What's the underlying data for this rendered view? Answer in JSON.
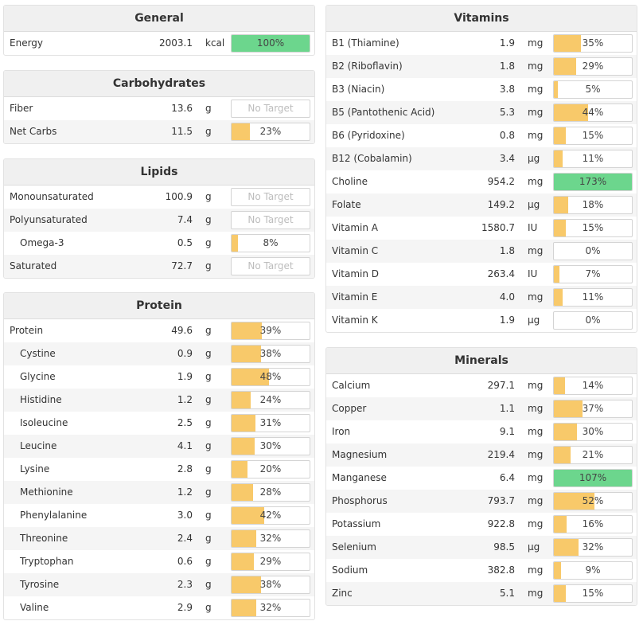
{
  "colors": {
    "bar_partial": "#f8c96a",
    "bar_complete": "#6cd68d",
    "header_bg": "#f0f0f0"
  },
  "sections": {
    "general": {
      "title": "General",
      "rows": [
        {
          "name": "Energy",
          "amount": "2003.1",
          "unit": "kcal",
          "label": "100%",
          "percent": 100
        }
      ]
    },
    "carbohydrates": {
      "title": "Carbohydrates",
      "rows": [
        {
          "name": "Fiber",
          "amount": "13.6",
          "unit": "g",
          "label": "No Target",
          "percent": null
        },
        {
          "name": "Net Carbs",
          "amount": "11.5",
          "unit": "g",
          "label": "23%",
          "percent": 23
        }
      ]
    },
    "lipids": {
      "title": "Lipids",
      "rows": [
        {
          "name": "Monounsaturated",
          "amount": "100.9",
          "unit": "g",
          "label": "No Target",
          "percent": null
        },
        {
          "name": "Polyunsaturated",
          "amount": "7.4",
          "unit": "g",
          "label": "No Target",
          "percent": null
        },
        {
          "name": "Omega-3",
          "amount": "0.5",
          "unit": "g",
          "label": "8%",
          "percent": 8,
          "indent": true
        },
        {
          "name": "Saturated",
          "amount": "72.7",
          "unit": "g",
          "label": "No Target",
          "percent": null
        }
      ]
    },
    "protein": {
      "title": "Protein",
      "rows": [
        {
          "name": "Protein",
          "amount": "49.6",
          "unit": "g",
          "label": "39%",
          "percent": 39
        },
        {
          "name": "Cystine",
          "amount": "0.9",
          "unit": "g",
          "label": "38%",
          "percent": 38,
          "indent": true
        },
        {
          "name": "Glycine",
          "amount": "1.9",
          "unit": "g",
          "label": "48%",
          "percent": 48,
          "indent": true
        },
        {
          "name": "Histidine",
          "amount": "1.2",
          "unit": "g",
          "label": "24%",
          "percent": 24,
          "indent": true
        },
        {
          "name": "Isoleucine",
          "amount": "2.5",
          "unit": "g",
          "label": "31%",
          "percent": 31,
          "indent": true
        },
        {
          "name": "Leucine",
          "amount": "4.1",
          "unit": "g",
          "label": "30%",
          "percent": 30,
          "indent": true
        },
        {
          "name": "Lysine",
          "amount": "2.8",
          "unit": "g",
          "label": "20%",
          "percent": 20,
          "indent": true
        },
        {
          "name": "Methionine",
          "amount": "1.2",
          "unit": "g",
          "label": "28%",
          "percent": 28,
          "indent": true
        },
        {
          "name": "Phenylalanine",
          "amount": "3.0",
          "unit": "g",
          "label": "42%",
          "percent": 42,
          "indent": true
        },
        {
          "name": "Threonine",
          "amount": "2.4",
          "unit": "g",
          "label": "32%",
          "percent": 32,
          "indent": true
        },
        {
          "name": "Tryptophan",
          "amount": "0.6",
          "unit": "g",
          "label": "29%",
          "percent": 29,
          "indent": true
        },
        {
          "name": "Tyrosine",
          "amount": "2.3",
          "unit": "g",
          "label": "38%",
          "percent": 38,
          "indent": true
        },
        {
          "name": "Valine",
          "amount": "2.9",
          "unit": "g",
          "label": "32%",
          "percent": 32,
          "indent": true
        }
      ]
    },
    "vitamins": {
      "title": "Vitamins",
      "rows": [
        {
          "name": "B1 (Thiamine)",
          "amount": "1.9",
          "unit": "mg",
          "label": "35%",
          "percent": 35
        },
        {
          "name": "B2 (Riboflavin)",
          "amount": "1.8",
          "unit": "mg",
          "label": "29%",
          "percent": 29
        },
        {
          "name": "B3 (Niacin)",
          "amount": "3.8",
          "unit": "mg",
          "label": "5%",
          "percent": 5
        },
        {
          "name": "B5 (Pantothenic Acid)",
          "amount": "5.3",
          "unit": "mg",
          "label": "44%",
          "percent": 44
        },
        {
          "name": "B6 (Pyridoxine)",
          "amount": "0.8",
          "unit": "mg",
          "label": "15%",
          "percent": 15
        },
        {
          "name": "B12 (Cobalamin)",
          "amount": "3.4",
          "unit": "µg",
          "label": "11%",
          "percent": 11
        },
        {
          "name": "Choline",
          "amount": "954.2",
          "unit": "mg",
          "label": "173%",
          "percent": 173
        },
        {
          "name": "Folate",
          "amount": "149.2",
          "unit": "µg",
          "label": "18%",
          "percent": 18
        },
        {
          "name": "Vitamin A",
          "amount": "1580.7",
          "unit": "IU",
          "label": "15%",
          "percent": 15
        },
        {
          "name": "Vitamin C",
          "amount": "1.8",
          "unit": "mg",
          "label": "0%",
          "percent": 0
        },
        {
          "name": "Vitamin D",
          "amount": "263.4",
          "unit": "IU",
          "label": "7%",
          "percent": 7
        },
        {
          "name": "Vitamin E",
          "amount": "4.0",
          "unit": "mg",
          "label": "11%",
          "percent": 11
        },
        {
          "name": "Vitamin K",
          "amount": "1.9",
          "unit": "µg",
          "label": "0%",
          "percent": 0
        }
      ]
    },
    "minerals": {
      "title": "Minerals",
      "rows": [
        {
          "name": "Calcium",
          "amount": "297.1",
          "unit": "mg",
          "label": "14%",
          "percent": 14
        },
        {
          "name": "Copper",
          "amount": "1.1",
          "unit": "mg",
          "label": "37%",
          "percent": 37
        },
        {
          "name": "Iron",
          "amount": "9.1",
          "unit": "mg",
          "label": "30%",
          "percent": 30
        },
        {
          "name": "Magnesium",
          "amount": "219.4",
          "unit": "mg",
          "label": "21%",
          "percent": 21
        },
        {
          "name": "Manganese",
          "amount": "6.4",
          "unit": "mg",
          "label": "107%",
          "percent": 107
        },
        {
          "name": "Phosphorus",
          "amount": "793.7",
          "unit": "mg",
          "label": "52%",
          "percent": 52
        },
        {
          "name": "Potassium",
          "amount": "922.8",
          "unit": "mg",
          "label": "16%",
          "percent": 16
        },
        {
          "name": "Selenium",
          "amount": "98.5",
          "unit": "µg",
          "label": "32%",
          "percent": 32
        },
        {
          "name": "Sodium",
          "amount": "382.8",
          "unit": "mg",
          "label": "9%",
          "percent": 9
        },
        {
          "name": "Zinc",
          "amount": "5.1",
          "unit": "mg",
          "label": "15%",
          "percent": 15
        }
      ]
    }
  }
}
